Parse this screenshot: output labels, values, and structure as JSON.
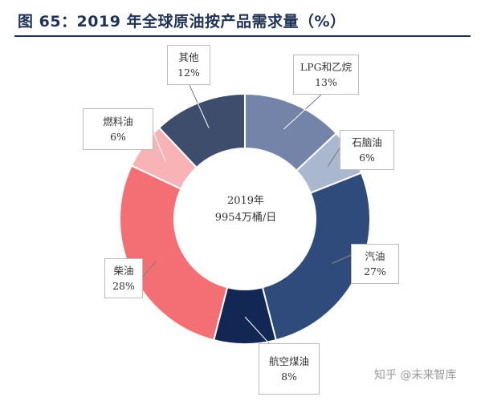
{
  "title": "图 65：2019 年全球原油按产品需求量（%）",
  "watermark": "知乎 @未来智库",
  "chart_data": {
    "type": "pie",
    "donut": true,
    "title": "图 65：2019 年全球原油按产品需求量（%）",
    "center_label": [
      "2019年",
      "9954万桶/日"
    ],
    "slices": [
      {
        "key": "lpg",
        "label": "LPG和乙烷",
        "value": 13,
        "value_label": "13%",
        "color": "#7384a8"
      },
      {
        "key": "naphtha",
        "label": "石脑油",
        "value": 6,
        "value_label": "6%",
        "color": "#aab8cf"
      },
      {
        "key": "gasoline",
        "label": "汽油",
        "value": 27,
        "value_label": "27%",
        "color": "#2e4b7b"
      },
      {
        "key": "jet-fuel",
        "label": "航空煤油",
        "value": 8,
        "value_label": "8%",
        "color": "#132755"
      },
      {
        "key": "diesel",
        "label": "柴油",
        "value": 28,
        "value_label": "28%",
        "color": "#f46f74"
      },
      {
        "key": "fuel-oil",
        "label": "燃料油",
        "value": 6,
        "value_label": "6%",
        "color": "#f7b3b6"
      },
      {
        "key": "other",
        "label": "其他",
        "value": 12,
        "value_label": "12%",
        "color": "#3d4d6b"
      }
    ]
  }
}
